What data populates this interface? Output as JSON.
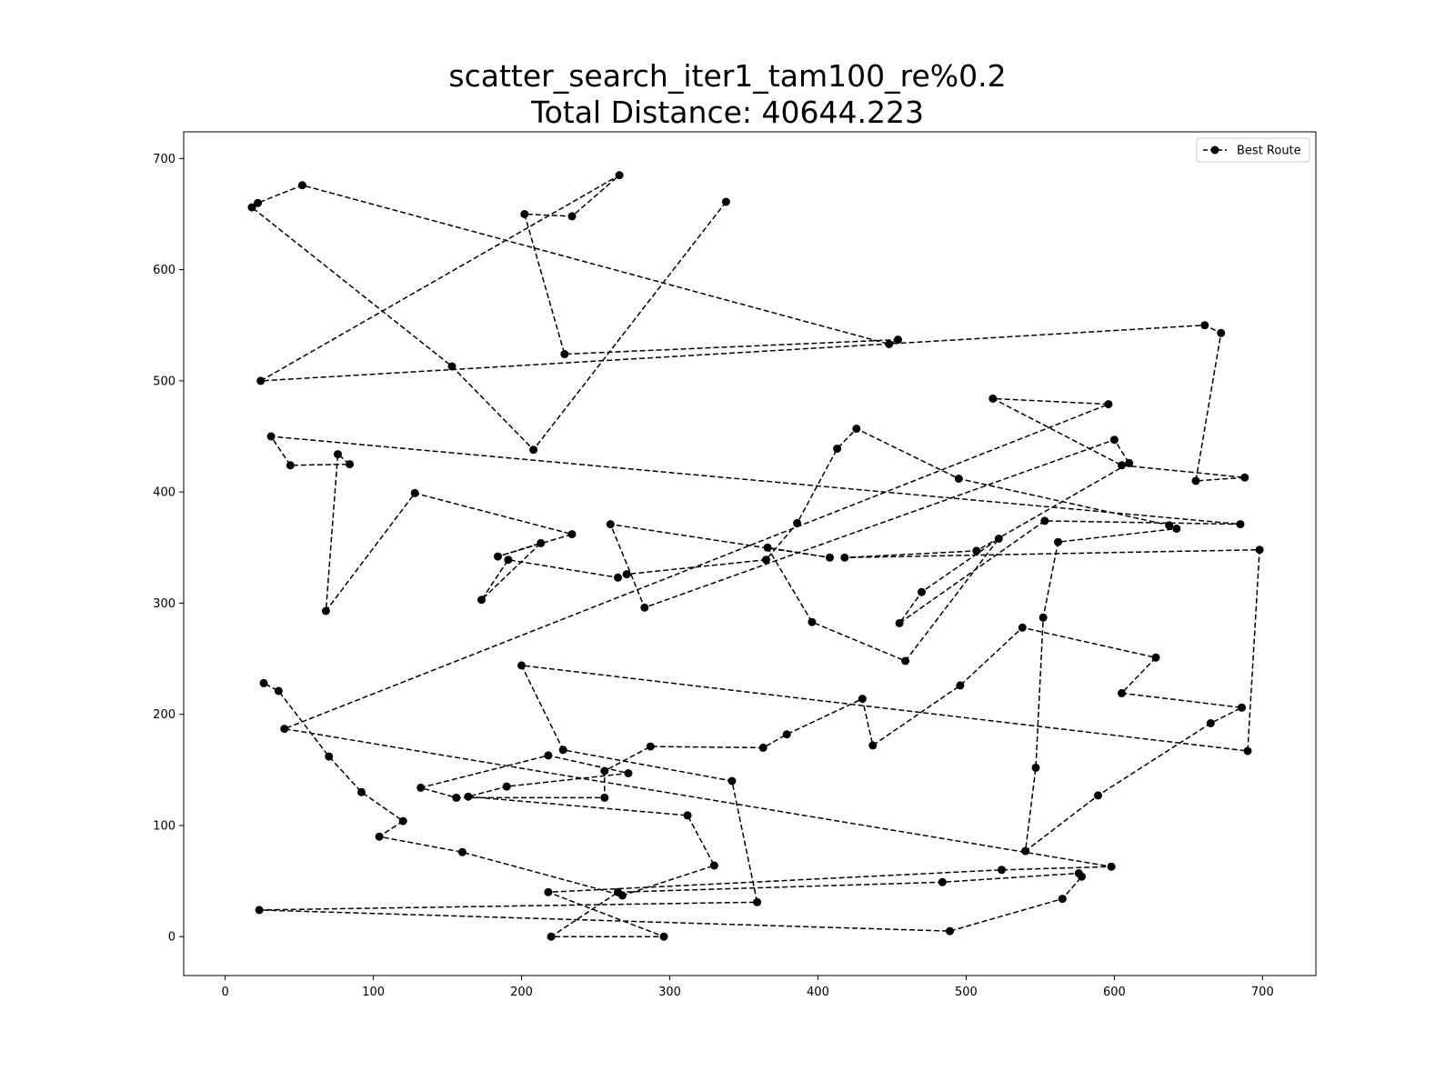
{
  "chart_data": {
    "type": "line",
    "title": "scatter_search_iter1_tam100_re%0.2",
    "subtitle": "Total Distance: 40644.223",
    "xlabel": "",
    "ylabel": "",
    "xlim": [
      -28,
      736
    ],
    "ylim": [
      -35,
      724
    ],
    "xticks": [
      0,
      100,
      200,
      300,
      400,
      500,
      600,
      700
    ],
    "yticks": [
      0,
      100,
      200,
      300,
      400,
      500,
      600,
      700
    ],
    "grid": false,
    "legend_position": "top-right",
    "colors": {
      "line": "#000000",
      "marker": "#000000",
      "axes": "#000000"
    },
    "series": [
      {
        "name": "Best Route",
        "style": "dashed line with circle markers",
        "x": [
          338,
          208,
          153,
          18,
          22,
          52,
          448,
          454,
          229,
          202,
          234,
          266,
          24,
          661,
          672,
          655,
          688,
          605,
          518,
          596,
          40,
          598,
          524,
          218,
          296,
          220,
          265,
          484,
          576,
          578,
          565,
          489,
          23,
          359,
          342,
          228,
          200,
          690,
          698,
          418,
          507,
          610,
          600,
          283,
          260,
          408,
          366,
          396,
          459,
          522,
          470,
          455,
          553,
          685,
          31,
          44,
          84,
          76,
          68,
          128,
          234,
          184,
          213,
          173,
          191,
          265,
          271,
          365,
          386,
          413,
          426,
          495,
          637,
          642,
          562,
          552,
          547,
          540,
          589,
          665,
          686,
          605,
          628,
          538,
          496,
          437,
          430,
          379,
          363,
          287,
          256,
          256,
          156,
          132,
          218,
          272,
          190,
          164,
          312,
          330,
          268,
          160,
          104,
          120,
          92,
          70,
          36,
          26
        ],
        "y": [
          661,
          438,
          513,
          656,
          660,
          676,
          533,
          537,
          524,
          650,
          648,
          685,
          500,
          550,
          543,
          410,
          413,
          424,
          484,
          479,
          187,
          63,
          60,
          40,
          0,
          0,
          40,
          49,
          57,
          54,
          34,
          5,
          24,
          31,
          140,
          168,
          244,
          167,
          348,
          341,
          347,
          426,
          447,
          296,
          371,
          341,
          350,
          283,
          248,
          358,
          310,
          282,
          374,
          371,
          450,
          424,
          425,
          434,
          293,
          399,
          362,
          342,
          354,
          303,
          339,
          323,
          326,
          339,
          372,
          439,
          457,
          412,
          370,
          367,
          355,
          287,
          152,
          77,
          127,
          192,
          206,
          219,
          251,
          278,
          226,
          172,
          214,
          182,
          170,
          171,
          149,
          125,
          125,
          134,
          163,
          147,
          135,
          126,
          109,
          64,
          37,
          76,
          90,
          104,
          130,
          162,
          221,
          228
        ]
      }
    ]
  }
}
